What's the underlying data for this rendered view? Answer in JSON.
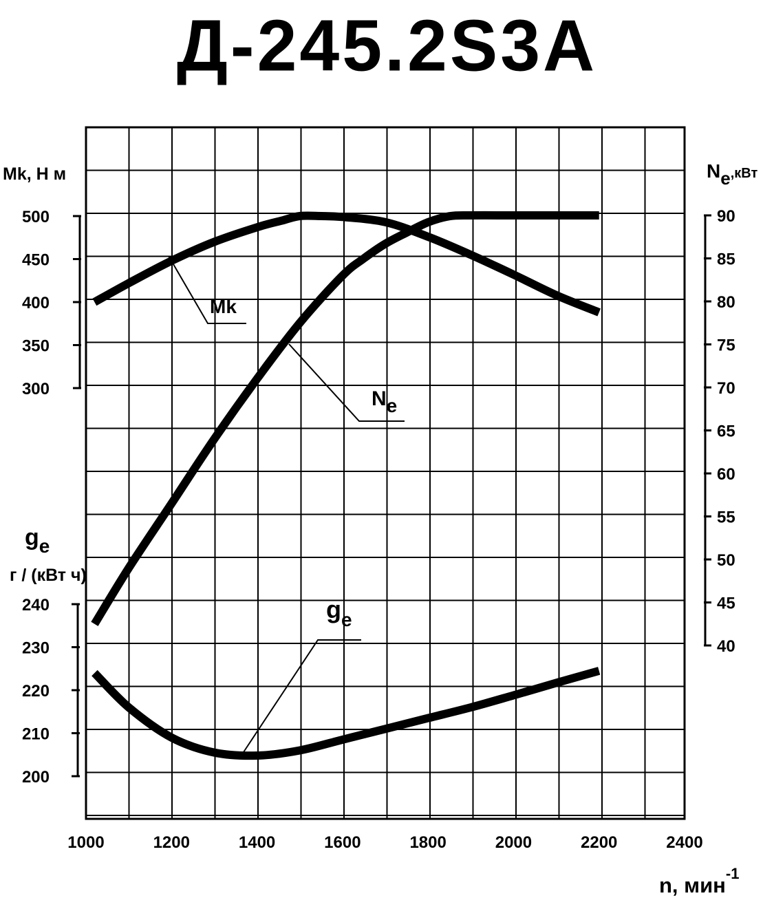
{
  "title": "Д-245.2S3A",
  "chart_data": {
    "type": "line",
    "title": "Д-245.2S3A",
    "xlabel": "n, мин",
    "xlabel_sup": "-1",
    "xlim": [
      1000,
      2400
    ],
    "xticks": [
      1000,
      1200,
      1400,
      1600,
      1800,
      2000,
      2200,
      2400
    ],
    "grid": true,
    "axes": {
      "torque": {
        "label": "Mk, Н м",
        "ticks": [
          300,
          350,
          400,
          450,
          500
        ],
        "range": [
          300,
          500
        ]
      },
      "power": {
        "label_main": "N",
        "label_sub": "e",
        "label_unit": ",кВт",
        "ticks": [
          40,
          45,
          50,
          55,
          60,
          65,
          70,
          75,
          80,
          85,
          90
        ],
        "range": [
          40,
          90
        ]
      },
      "fuel": {
        "label_main": "g",
        "label_sub": "e",
        "label_unit": "г / (кВт ч)",
        "ticks": [
          200,
          210,
          220,
          230,
          240
        ],
        "range": [
          200,
          240
        ]
      }
    },
    "series": [
      {
        "name": "Mk",
        "axis": "torque",
        "x": [
          1020,
          1100,
          1200,
          1300,
          1400,
          1460,
          1500,
          1550,
          1600,
          1700,
          1800,
          1900,
          2000,
          2100,
          2200
        ],
        "y": [
          400,
          422,
          448,
          470,
          487,
          495,
          500,
          500,
          499,
          493,
          476,
          455,
          432,
          408,
          388
        ]
      },
      {
        "name": "N",
        "name_sub": "e",
        "axis": "power",
        "x": [
          1020,
          1100,
          1200,
          1300,
          1400,
          1500,
          1600,
          1650,
          1700,
          1750,
          1800,
          1850,
          1900,
          2000,
          2100,
          2200
        ],
        "y": [
          42.5,
          49,
          56.5,
          64,
          71,
          77.5,
          83,
          85,
          86.7,
          88,
          89.2,
          89.9,
          90,
          90,
          90,
          90
        ]
      },
      {
        "name": "g",
        "name_sub": "e",
        "axis": "fuel",
        "x": [
          1020,
          1100,
          1200,
          1300,
          1400,
          1500,
          1600,
          1700,
          1800,
          1900,
          2000,
          2100,
          2200
        ],
        "y": [
          224,
          216,
          209,
          205.5,
          204.8,
          206,
          208.5,
          211,
          213.5,
          216,
          218.8,
          221.7,
          224.5
        ]
      }
    ]
  }
}
